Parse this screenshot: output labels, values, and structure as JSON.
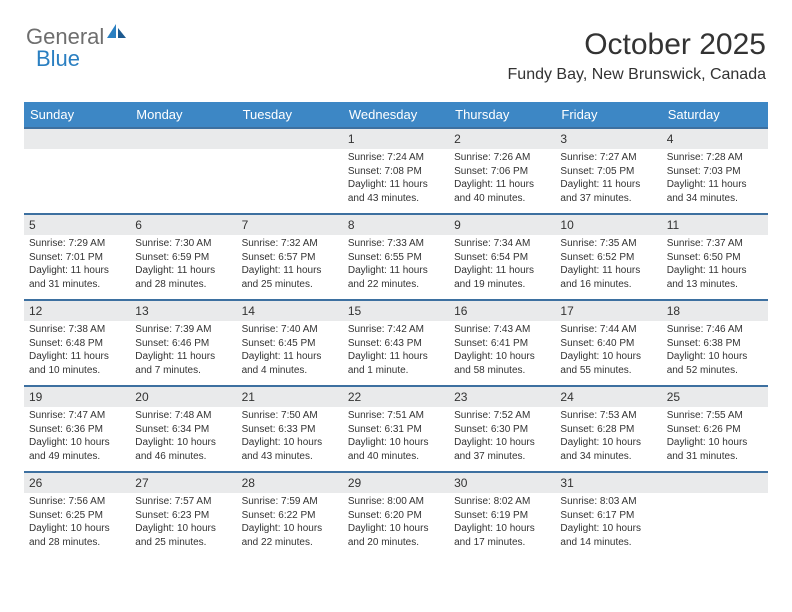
{
  "logo": {
    "text1": "General",
    "text2": "Blue"
  },
  "title": "October 2025",
  "location": "Fundy Bay, New Brunswick, Canada",
  "colors": {
    "header_bg": "#3d87c5",
    "header_text": "#ffffff",
    "daynum_bg": "#e9eaeb",
    "daynum_border": "#3d70a0",
    "text": "#333333",
    "logo_gray": "#6e6e6e",
    "logo_blue": "#2a7fc1",
    "background": "#ffffff"
  },
  "weekdays": [
    "Sunday",
    "Monday",
    "Tuesday",
    "Wednesday",
    "Thursday",
    "Friday",
    "Saturday"
  ],
  "weeks": [
    [
      {
        "empty": true
      },
      {
        "empty": true
      },
      {
        "empty": true
      },
      {
        "day": "1",
        "sunrise": "7:24 AM",
        "sunset": "7:08 PM",
        "daylight": "11 hours and 43 minutes."
      },
      {
        "day": "2",
        "sunrise": "7:26 AM",
        "sunset": "7:06 PM",
        "daylight": "11 hours and 40 minutes."
      },
      {
        "day": "3",
        "sunrise": "7:27 AM",
        "sunset": "7:05 PM",
        "daylight": "11 hours and 37 minutes."
      },
      {
        "day": "4",
        "sunrise": "7:28 AM",
        "sunset": "7:03 PM",
        "daylight": "11 hours and 34 minutes."
      }
    ],
    [
      {
        "day": "5",
        "sunrise": "7:29 AM",
        "sunset": "7:01 PM",
        "daylight": "11 hours and 31 minutes."
      },
      {
        "day": "6",
        "sunrise": "7:30 AM",
        "sunset": "6:59 PM",
        "daylight": "11 hours and 28 minutes."
      },
      {
        "day": "7",
        "sunrise": "7:32 AM",
        "sunset": "6:57 PM",
        "daylight": "11 hours and 25 minutes."
      },
      {
        "day": "8",
        "sunrise": "7:33 AM",
        "sunset": "6:55 PM",
        "daylight": "11 hours and 22 minutes."
      },
      {
        "day": "9",
        "sunrise": "7:34 AM",
        "sunset": "6:54 PM",
        "daylight": "11 hours and 19 minutes."
      },
      {
        "day": "10",
        "sunrise": "7:35 AM",
        "sunset": "6:52 PM",
        "daylight": "11 hours and 16 minutes."
      },
      {
        "day": "11",
        "sunrise": "7:37 AM",
        "sunset": "6:50 PM",
        "daylight": "11 hours and 13 minutes."
      }
    ],
    [
      {
        "day": "12",
        "sunrise": "7:38 AM",
        "sunset": "6:48 PM",
        "daylight": "11 hours and 10 minutes."
      },
      {
        "day": "13",
        "sunrise": "7:39 AM",
        "sunset": "6:46 PM",
        "daylight": "11 hours and 7 minutes."
      },
      {
        "day": "14",
        "sunrise": "7:40 AM",
        "sunset": "6:45 PM",
        "daylight": "11 hours and 4 minutes."
      },
      {
        "day": "15",
        "sunrise": "7:42 AM",
        "sunset": "6:43 PM",
        "daylight": "11 hours and 1 minute."
      },
      {
        "day": "16",
        "sunrise": "7:43 AM",
        "sunset": "6:41 PM",
        "daylight": "10 hours and 58 minutes."
      },
      {
        "day": "17",
        "sunrise": "7:44 AM",
        "sunset": "6:40 PM",
        "daylight": "10 hours and 55 minutes."
      },
      {
        "day": "18",
        "sunrise": "7:46 AM",
        "sunset": "6:38 PM",
        "daylight": "10 hours and 52 minutes."
      }
    ],
    [
      {
        "day": "19",
        "sunrise": "7:47 AM",
        "sunset": "6:36 PM",
        "daylight": "10 hours and 49 minutes."
      },
      {
        "day": "20",
        "sunrise": "7:48 AM",
        "sunset": "6:34 PM",
        "daylight": "10 hours and 46 minutes."
      },
      {
        "day": "21",
        "sunrise": "7:50 AM",
        "sunset": "6:33 PM",
        "daylight": "10 hours and 43 minutes."
      },
      {
        "day": "22",
        "sunrise": "7:51 AM",
        "sunset": "6:31 PM",
        "daylight": "10 hours and 40 minutes."
      },
      {
        "day": "23",
        "sunrise": "7:52 AM",
        "sunset": "6:30 PM",
        "daylight": "10 hours and 37 minutes."
      },
      {
        "day": "24",
        "sunrise": "7:53 AM",
        "sunset": "6:28 PM",
        "daylight": "10 hours and 34 minutes."
      },
      {
        "day": "25",
        "sunrise": "7:55 AM",
        "sunset": "6:26 PM",
        "daylight": "10 hours and 31 minutes."
      }
    ],
    [
      {
        "day": "26",
        "sunrise": "7:56 AM",
        "sunset": "6:25 PM",
        "daylight": "10 hours and 28 minutes."
      },
      {
        "day": "27",
        "sunrise": "7:57 AM",
        "sunset": "6:23 PM",
        "daylight": "10 hours and 25 minutes."
      },
      {
        "day": "28",
        "sunrise": "7:59 AM",
        "sunset": "6:22 PM",
        "daylight": "10 hours and 22 minutes."
      },
      {
        "day": "29",
        "sunrise": "8:00 AM",
        "sunset": "6:20 PM",
        "daylight": "10 hours and 20 minutes."
      },
      {
        "day": "30",
        "sunrise": "8:02 AM",
        "sunset": "6:19 PM",
        "daylight": "10 hours and 17 minutes."
      },
      {
        "day": "31",
        "sunrise": "8:03 AM",
        "sunset": "6:17 PM",
        "daylight": "10 hours and 14 minutes."
      },
      {
        "empty": true
      }
    ]
  ],
  "labels": {
    "sunrise": "Sunrise:",
    "sunset": "Sunset:",
    "daylight": "Daylight:"
  }
}
